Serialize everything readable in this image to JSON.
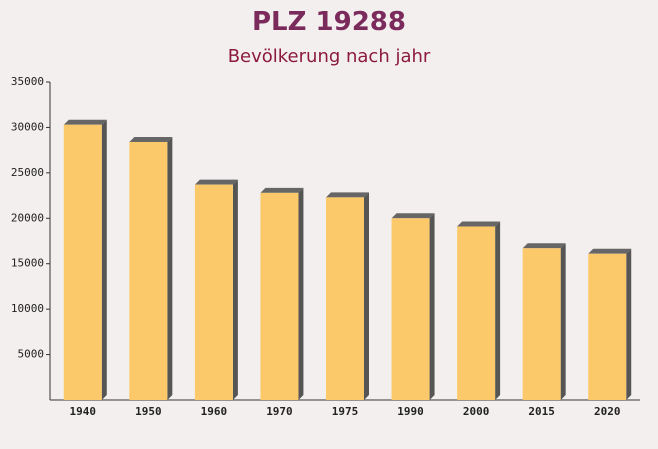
{
  "chart_data": {
    "type": "bar",
    "title": "PLZ 19288",
    "subtitle": "Bevölkerung nach jahr",
    "categories": [
      "1940",
      "1950",
      "1960",
      "1970",
      "1975",
      "1990",
      "2000",
      "2015",
      "2020"
    ],
    "values": [
      30300,
      28400,
      23700,
      22800,
      22300,
      20000,
      19100,
      16700,
      16100
    ],
    "color": "#fcc96a",
    "ylim": [
      0,
      35000
    ],
    "yticks": [
      5000,
      10000,
      15000,
      20000,
      25000,
      30000,
      35000
    ],
    "grid": false
  }
}
